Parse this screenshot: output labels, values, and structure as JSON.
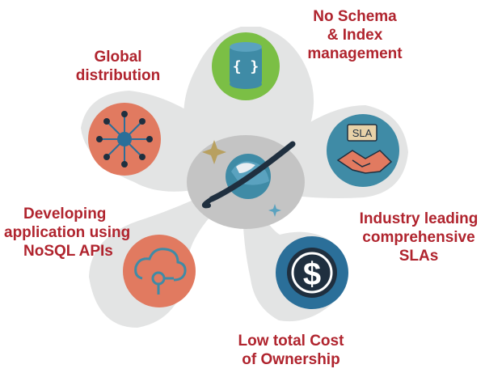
{
  "colors": {
    "label_text": "#b0242e",
    "petal_fill": "#e3e4e4",
    "center_blob": "#bfbfbf",
    "schema_circle": "#7bbf45",
    "global_circle": "#e17a60",
    "sla_circle": "#3f8ba6",
    "nosql_circle": "#e17a60",
    "cost_circle": "#2b6f99",
    "icon_dark": "#1f2f3f",
    "sparkle": "#b8a060"
  },
  "icons": {
    "schema": "database-cylinder-icon",
    "global": "network-hub-icon",
    "sla": "sla-handshake-icon",
    "nosql": "cloud-connector-icon",
    "cost": "dollar-coin-icon",
    "center": "cosmos-planet-logo"
  },
  "labels": {
    "schema": [
      "No Schema",
      "& Index",
      "management"
    ],
    "global": [
      "Global",
      "distribution"
    ],
    "sla": [
      "Industry leading",
      "comprehensive",
      "SLAs"
    ],
    "nosql": [
      "Developing",
      "application using",
      "NoSQL APIs"
    ],
    "cost": [
      "Low total Cost",
      "of Ownership"
    ]
  },
  "sla_badge": "SLA"
}
